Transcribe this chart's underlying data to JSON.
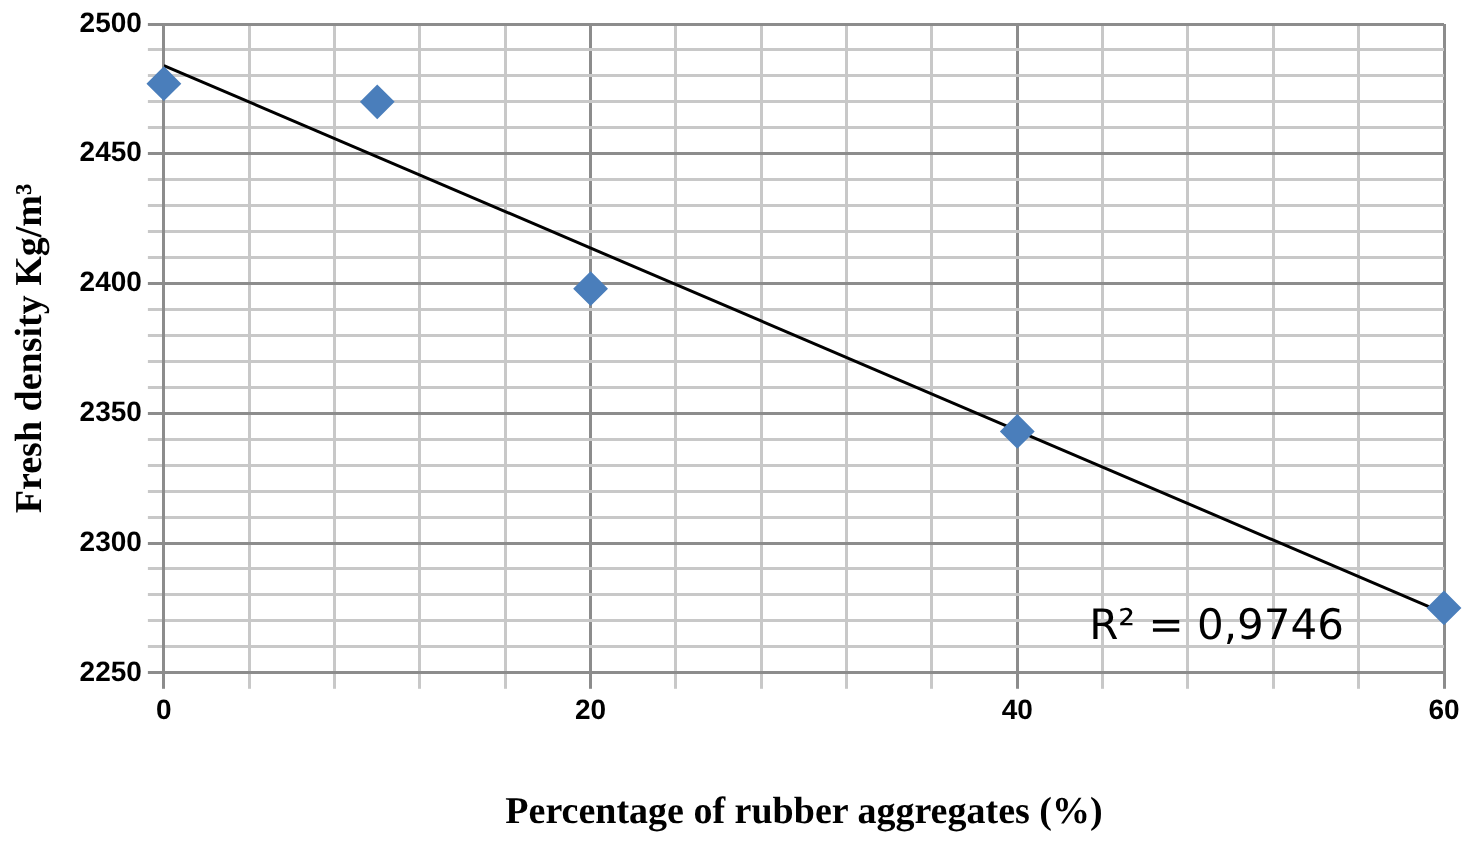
{
  "chart_data": {
    "type": "scatter",
    "xlabel": "Percentage of rubber aggregates (%)",
    "ylabel": "Fresh density Kg/m³",
    "series": [
      {
        "type": "scatter",
        "color": "#4a7ebb",
        "x": [
          0,
          10,
          20,
          40,
          60
        ],
        "values": [
          2477,
          2470,
          2398,
          2343,
          2275
        ],
        "marker": "diamond"
      },
      {
        "type": "line",
        "color": "#000000",
        "x": [
          0,
          60
        ],
        "values": [
          2484,
          2273
        ],
        "marker": "none",
        "line_style": "solid"
      }
    ],
    "xlim": [
      0,
      60
    ],
    "ylim": [
      2250,
      2500
    ],
    "xticks": [
      0,
      {
        "value": 4,
        "label": null
      },
      {
        "value": 8,
        "label": null
      },
      {
        "value": 12,
        "label": null
      },
      {
        "value": 16,
        "label": null
      },
      20,
      {
        "value": 24,
        "label": null
      },
      {
        "value": 28,
        "label": null
      },
      {
        "value": 32,
        "label": null
      },
      {
        "value": 36,
        "label": null
      },
      40,
      {
        "value": 44,
        "label": null
      },
      {
        "value": 48,
        "label": null
      },
      {
        "value": 52,
        "label": null
      },
      {
        "value": 56,
        "label": null
      },
      60
    ],
    "yticks": [
      2250,
      {
        "value": 2260,
        "label": null
      },
      {
        "value": 2270,
        "label": null
      },
      {
        "value": 2280,
        "label": null
      },
      {
        "value": 2290,
        "label": null
      },
      2300,
      {
        "value": 2310,
        "label": null
      },
      {
        "value": 2320,
        "label": null
      },
      {
        "value": 2330,
        "label": null
      },
      {
        "value": 2340,
        "label": null
      },
      2350,
      {
        "value": 2360,
        "label": null
      },
      {
        "value": 2370,
        "label": null
      },
      {
        "value": 2380,
        "label": null
      },
      {
        "value": 2390,
        "label": null
      },
      2400,
      {
        "value": 2410,
        "label": null
      },
      {
        "value": 2420,
        "label": null
      },
      {
        "value": 2430,
        "label": null
      },
      {
        "value": 2440,
        "label": null
      },
      2450,
      {
        "value": 2460,
        "label": null
      },
      {
        "value": 2470,
        "label": null
      },
      {
        "value": 2480,
        "label": null
      },
      {
        "value": 2490,
        "label": null
      },
      2500
    ],
    "grid": true,
    "legend": false,
    "annotations": [
      "R² = 0,9746"
    ]
  }
}
